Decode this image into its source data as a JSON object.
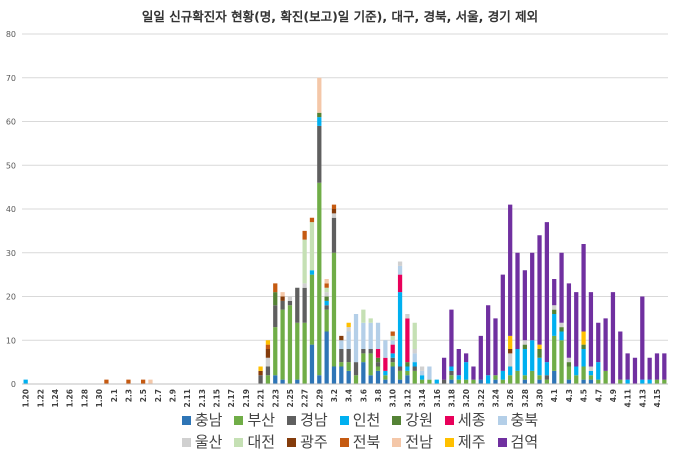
{
  "chart_data": {
    "type": "bar",
    "stacked": true,
    "title": "일일 신규확진자 현황(명, 확진(보고)일 기준), 대구, 경북, 서울, 경기 제외",
    "xlabel": "",
    "ylabel": "",
    "ylim": [
      0,
      80
    ],
    "yticks": [
      "0",
      "10",
      "20",
      "30",
      "40",
      "50",
      "60",
      "70",
      "80"
    ],
    "grid": true,
    "legend_position": "bottom",
    "categories": [
      "1.20",
      "1.21",
      "1.22",
      "1.23",
      "1.24",
      "1.25",
      "1.26",
      "1.27",
      "1.28",
      "1.29",
      "1.30",
      "1.31",
      "2.1",
      "2.2",
      "2.3",
      "2.4",
      "2.5",
      "2.6",
      "2.7",
      "2.8",
      "2.9",
      "2.10",
      "2.11",
      "2.12",
      "2.13",
      "2.14",
      "2.15",
      "2.16",
      "2.17",
      "2.18",
      "2.19",
      "2.20",
      "2.21",
      "2.22",
      "2.23",
      "2.24",
      "2.25",
      "2.26",
      "2.27",
      "2.28",
      "2.29",
      "3.1",
      "3.2",
      "3.3",
      "3.4",
      "3.5",
      "3.6",
      "3.7",
      "3.8",
      "3.9",
      "3.10",
      "3.11",
      "3.12",
      "3.13",
      "3.14",
      "3.15",
      "3.16",
      "3.17",
      "3.18",
      "3.19",
      "3.20",
      "3.21",
      "3.22",
      "3.23",
      "3.24",
      "3.25",
      "3.26",
      "3.27",
      "3.28",
      "3.29",
      "3.30",
      "3.31",
      "4.1",
      "4.2",
      "4.3",
      "4.4",
      "4.5",
      "4.6",
      "4.7",
      "4.8",
      "4.9",
      "4.10",
      "4.11",
      "4.12",
      "4.13",
      "4.14",
      "4.15",
      "4.16"
    ],
    "tick_labels": [
      "1.20",
      "1.22",
      "1.24",
      "1.26",
      "1.28",
      "1.30",
      "2.1",
      "2.3",
      "2.5",
      "2.7",
      "2.9",
      "2.11",
      "2.13",
      "2.15",
      "2.17",
      "2.19",
      "2.21",
      "2.23",
      "2.25",
      "2.27",
      "2.29",
      "3.2",
      "3.4",
      "3.6",
      "3.8",
      "3.10",
      "3.12",
      "3.14",
      "3.16",
      "3.18",
      "3.20",
      "3.22",
      "3.24",
      "3.26",
      "3.28",
      "3.30",
      "4.1",
      "4.3",
      "4.5",
      "4.7",
      "4.9",
      "4.11",
      "4.13",
      "4.15"
    ],
    "series": [
      {
        "name": "충남",
        "color": "#2e75b6",
        "values": [
          0,
          0,
          0,
          0,
          0,
          0,
          0,
          0,
          0,
          0,
          0,
          0,
          0,
          0,
          0,
          0,
          0,
          0,
          0,
          0,
          0,
          0,
          0,
          0,
          0,
          0,
          0,
          0,
          0,
          0,
          0,
          0,
          0,
          0,
          2,
          1,
          0,
          1,
          0,
          9,
          2,
          12,
          4,
          4,
          3,
          0,
          5,
          2,
          3,
          1,
          4,
          1,
          2,
          0,
          0,
          0,
          0,
          0,
          1,
          0,
          0,
          0,
          1,
          0,
          1,
          0,
          0,
          0,
          1,
          0,
          1,
          0,
          3,
          0,
          1,
          0,
          1,
          1,
          0,
          0,
          0,
          0,
          0,
          0,
          0,
          0,
          0,
          0
        ]
      },
      {
        "name": "부산",
        "color": "#70ad47",
        "values": [
          0,
          0,
          0,
          0,
          0,
          0,
          0,
          0,
          0,
          0,
          0,
          0,
          0,
          0,
          0,
          0,
          0,
          0,
          0,
          0,
          0,
          0,
          0,
          0,
          0,
          0,
          0,
          0,
          0,
          0,
          0,
          0,
          0,
          2,
          11,
          16,
          18,
          13,
          14,
          16,
          44,
          5,
          26,
          1,
          2,
          2,
          2,
          5,
          1,
          1,
          1,
          2,
          1,
          3,
          1,
          1,
          0,
          0,
          1,
          1,
          1,
          1,
          0,
          0,
          1,
          1,
          2,
          3,
          1,
          3,
          1,
          1,
          8,
          10,
          3,
          2,
          3,
          1,
          1,
          3,
          0,
          1,
          0,
          0,
          0,
          0,
          1,
          1
        ]
      },
      {
        "name": "경남",
        "color": "#5f5f5f",
        "values": [
          0,
          0,
          0,
          0,
          0,
          0,
          0,
          0,
          0,
          0,
          0,
          0,
          0,
          0,
          0,
          0,
          0,
          0,
          0,
          0,
          0,
          0,
          0,
          0,
          0,
          0,
          0,
          0,
          0,
          0,
          0,
          0,
          2,
          2,
          5,
          2,
          1,
          8,
          8,
          0,
          13,
          1,
          8,
          3,
          3,
          3,
          1,
          1,
          1,
          0,
          1,
          1,
          0,
          1,
          0,
          0,
          0,
          1,
          1,
          0,
          0,
          0,
          0,
          0,
          0,
          0,
          0,
          0,
          0,
          0,
          0,
          1,
          0,
          0,
          0,
          0,
          0,
          0,
          0,
          0,
          0,
          0,
          0,
          0,
          0,
          0,
          0,
          0
        ]
      },
      {
        "name": "인천",
        "color": "#00b0f0",
        "values": [
          1,
          0,
          0,
          0,
          0,
          0,
          0,
          0,
          0,
          0,
          0,
          0,
          0,
          0,
          0,
          0,
          0,
          0,
          0,
          0,
          0,
          0,
          0,
          0,
          0,
          0,
          0,
          0,
          0,
          0,
          0,
          0,
          0,
          0,
          0,
          0,
          0,
          0,
          0,
          1,
          2,
          1,
          0,
          0,
          0,
          0,
          0,
          0,
          0,
          1,
          1,
          17,
          1,
          1,
          1,
          0,
          1,
          0,
          1,
          1,
          4,
          0,
          0,
          2,
          0,
          2,
          2,
          5,
          6,
          7,
          4,
          3,
          5,
          2,
          0,
          2,
          4,
          1,
          4,
          0,
          0,
          0,
          1,
          0,
          1,
          1,
          0,
          0
        ]
      },
      {
        "name": "강원",
        "color": "#548235",
        "values": [
          0,
          0,
          0,
          0,
          0,
          0,
          0,
          0,
          0,
          0,
          0,
          0,
          0,
          0,
          0,
          0,
          0,
          0,
          0,
          0,
          0,
          0,
          0,
          0,
          0,
          0,
          0,
          0,
          0,
          0,
          0,
          0,
          0,
          0,
          3,
          0,
          0,
          0,
          0,
          0,
          1,
          1,
          0,
          0,
          0,
          0,
          0,
          0,
          1,
          0,
          0,
          0,
          1,
          0,
          0,
          0,
          0,
          0,
          0,
          0,
          0,
          0,
          0,
          0,
          0,
          0,
          0,
          0,
          1,
          0,
          2,
          0,
          1,
          1,
          1,
          0,
          1,
          0,
          0,
          0,
          0,
          0,
          0,
          0,
          0,
          0,
          0,
          0
        ]
      },
      {
        "name": "세종",
        "color": "#e8005a",
        "values": [
          0,
          0,
          0,
          0,
          0,
          0,
          0,
          0,
          0,
          0,
          0,
          0,
          0,
          0,
          0,
          0,
          0,
          0,
          0,
          0,
          0,
          0,
          0,
          0,
          0,
          0,
          0,
          0,
          0,
          0,
          0,
          0,
          0,
          0,
          0,
          0,
          0,
          0,
          0,
          0,
          0,
          0,
          0,
          0,
          0,
          0,
          0,
          0,
          2,
          3,
          2,
          4,
          10,
          0,
          0,
          0,
          0,
          0,
          0,
          0,
          0,
          0,
          0,
          0,
          0,
          0,
          0,
          0,
          0,
          0,
          0,
          0,
          0,
          0,
          0,
          0,
          0,
          0,
          0,
          0,
          0,
          0,
          0,
          0,
          0,
          0,
          0,
          0
        ]
      },
      {
        "name": "충북",
        "color": "#b4cfe8",
        "values": [
          0,
          0,
          0,
          0,
          0,
          0,
          0,
          0,
          0,
          0,
          0,
          0,
          0,
          0,
          0,
          0,
          0,
          0,
          0,
          0,
          0,
          0,
          0,
          0,
          0,
          0,
          0,
          0,
          0,
          0,
          0,
          0,
          0,
          0,
          0,
          0,
          0,
          0,
          0,
          0,
          0,
          0,
          0,
          2,
          4,
          11,
          6,
          6,
          6,
          4,
          1,
          2,
          0,
          2,
          1,
          3,
          0,
          0,
          0,
          0,
          0,
          0,
          0,
          0,
          0,
          0,
          0,
          0,
          0,
          0,
          0,
          0,
          0,
          0,
          0,
          0,
          0,
          0,
          0,
          0,
          0,
          0,
          0,
          0,
          0,
          0,
          0,
          0
        ]
      },
      {
        "name": "울산",
        "color": "#d0d0d0",
        "values": [
          0,
          0,
          0,
          0,
          0,
          0,
          0,
          0,
          0,
          0,
          0,
          0,
          0,
          0,
          0,
          0,
          0,
          0,
          0,
          0,
          0,
          0,
          0,
          0,
          0,
          0,
          0,
          0,
          0,
          0,
          0,
          0,
          0,
          2,
          0,
          0,
          1,
          0,
          1,
          0,
          0,
          1,
          1,
          0,
          1,
          0,
          0,
          0,
          0,
          0,
          0,
          1,
          1,
          1,
          1,
          0,
          0,
          0,
          0,
          0,
          0,
          0,
          0,
          0,
          0,
          0,
          3,
          0,
          1,
          0,
          0,
          0,
          1,
          1,
          1,
          0,
          0,
          1,
          0,
          0,
          0,
          0,
          0,
          0,
          0,
          0,
          0,
          0
        ]
      },
      {
        "name": "대전",
        "color": "#c5e0b4",
        "values": [
          0,
          0,
          0,
          0,
          0,
          0,
          0,
          0,
          0,
          0,
          0,
          0,
          0,
          0,
          0,
          0,
          0,
          0,
          0,
          0,
          0,
          0,
          0,
          0,
          0,
          0,
          0,
          0,
          0,
          0,
          0,
          0,
          0,
          0,
          0,
          0,
          0,
          0,
          10,
          11,
          0,
          1,
          0,
          0,
          0,
          0,
          3,
          1,
          0,
          0,
          1,
          0,
          0,
          6,
          0,
          0,
          0,
          0,
          0,
          0,
          0,
          0,
          0,
          0,
          0,
          0,
          0,
          0,
          0,
          0,
          0,
          0,
          0,
          0,
          0,
          0,
          0,
          0,
          0,
          0,
          0,
          0,
          0,
          0,
          0,
          0,
          0,
          0
        ]
      },
      {
        "name": "광주",
        "color": "#843c0c",
        "values": [
          0,
          0,
          0,
          0,
          0,
          0,
          0,
          0,
          0,
          0,
          0,
          0,
          0,
          0,
          0,
          0,
          0,
          0,
          0,
          0,
          0,
          0,
          0,
          0,
          0,
          0,
          0,
          0,
          0,
          0,
          0,
          0,
          1,
          2,
          0,
          1,
          0,
          0,
          0,
          0,
          0,
          0,
          1,
          1,
          0,
          0,
          0,
          0,
          0,
          0,
          0,
          0,
          0,
          0,
          0,
          0,
          0,
          0,
          0,
          0,
          0,
          0,
          0,
          0,
          0,
          0,
          1,
          0,
          0,
          0,
          0,
          0,
          0,
          0,
          0,
          0,
          0,
          0,
          0,
          0,
          0,
          0,
          0,
          0,
          0,
          0,
          0,
          0
        ]
      },
      {
        "name": "전북",
        "color": "#c55a11",
        "values": [
          0,
          0,
          0,
          0,
          0,
          0,
          0,
          0,
          0,
          0,
          0,
          1,
          0,
          0,
          1,
          0,
          1,
          0,
          0,
          0,
          0,
          0,
          0,
          0,
          0,
          0,
          0,
          0,
          0,
          0,
          0,
          0,
          0,
          1,
          2,
          0,
          0,
          0,
          2,
          1,
          0,
          1,
          1,
          0,
          0,
          0,
          0,
          0,
          0,
          0,
          1,
          0,
          0,
          0,
          0,
          0,
          0,
          0,
          0,
          0,
          0,
          0,
          0,
          0,
          0,
          0,
          0,
          0,
          0,
          0,
          0,
          0,
          0,
          0,
          0,
          0,
          0,
          0,
          0,
          0,
          0,
          0,
          0,
          0,
          0,
          0,
          0,
          0
        ]
      },
      {
        "name": "전남",
        "color": "#f4c7a8",
        "values": [
          0,
          0,
          0,
          0,
          0,
          0,
          0,
          0,
          0,
          0,
          0,
          0,
          0,
          0,
          0,
          0,
          0,
          1,
          0,
          0,
          0,
          0,
          0,
          0,
          0,
          0,
          0,
          0,
          0,
          0,
          0,
          0,
          0,
          0,
          0,
          1,
          0,
          0,
          0,
          0,
          8,
          1,
          0,
          0,
          0,
          0,
          0,
          0,
          0,
          0,
          0,
          0,
          0,
          0,
          0,
          0,
          0,
          0,
          0,
          0,
          0,
          0,
          0,
          0,
          0,
          0,
          0,
          0,
          0,
          0,
          0,
          0,
          0,
          0,
          0,
          0,
          0,
          0,
          0,
          0,
          0,
          0,
          0,
          0,
          0,
          0,
          0,
          0
        ]
      },
      {
        "name": "제주",
        "color": "#ffc000",
        "values": [
          0,
          0,
          0,
          0,
          0,
          0,
          0,
          0,
          0,
          0,
          0,
          0,
          0,
          0,
          0,
          0,
          0,
          0,
          0,
          0,
          0,
          0,
          0,
          0,
          0,
          0,
          0,
          0,
          0,
          0,
          0,
          0,
          1,
          1,
          0,
          0,
          0,
          0,
          0,
          0,
          0,
          0,
          0,
          0,
          1,
          0,
          0,
          0,
          0,
          0,
          0,
          0,
          0,
          0,
          0,
          0,
          0,
          0,
          0,
          0,
          0,
          0,
          0,
          0,
          0,
          0,
          3,
          0,
          0,
          0,
          1,
          0,
          0,
          0,
          0,
          0,
          3,
          0,
          0,
          0,
          0,
          0,
          0,
          0,
          0,
          0,
          0,
          0
        ]
      },
      {
        "name": "검역",
        "color": "#7030a0",
        "values": [
          0,
          0,
          0,
          0,
          0,
          0,
          0,
          0,
          0,
          0,
          0,
          0,
          0,
          0,
          0,
          0,
          0,
          0,
          0,
          0,
          0,
          0,
          0,
          0,
          0,
          0,
          0,
          0,
          0,
          0,
          0,
          0,
          0,
          0,
          0,
          0,
          0,
          0,
          0,
          0,
          0,
          0,
          0,
          0,
          0,
          0,
          0,
          0,
          0,
          0,
          0,
          0,
          0,
          0,
          0,
          0,
          0,
          5,
          13,
          6,
          2,
          3,
          10,
          16,
          13,
          22,
          30,
          22,
          16,
          20,
          25,
          32,
          6,
          16,
          17,
          17,
          20,
          17,
          9,
          12,
          21,
          11,
          6,
          6,
          19,
          5,
          6,
          6
        ]
      }
    ]
  }
}
